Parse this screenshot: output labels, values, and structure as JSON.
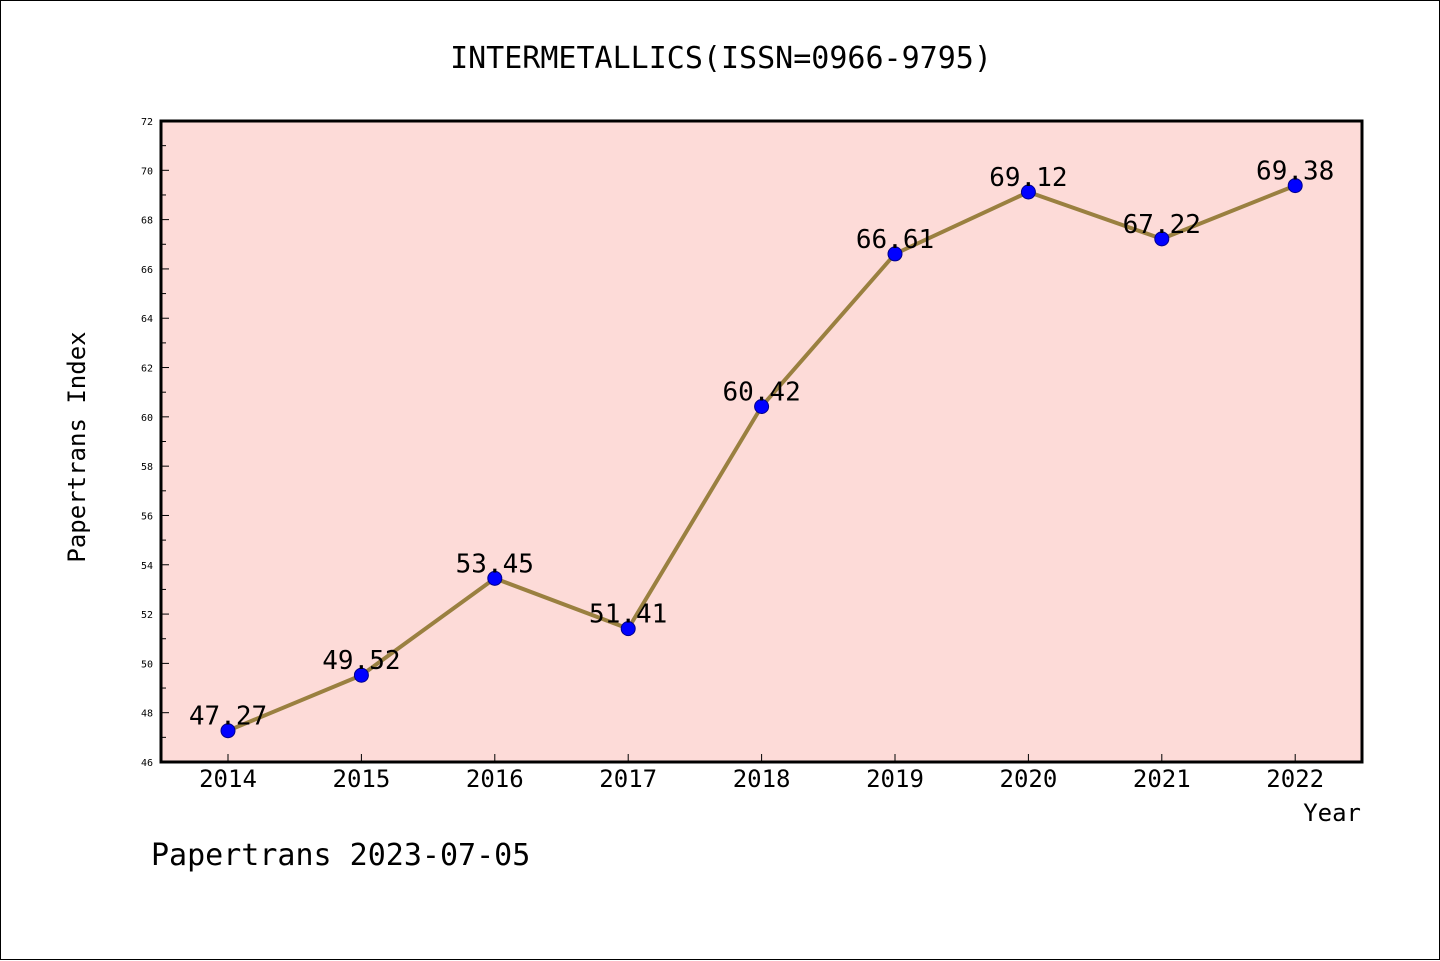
{
  "chart_data": {
    "type": "line",
    "title": "INTERMETALLICS(ISSN=0966-9795)",
    "xlabel": "Year",
    "ylabel": "Papertrans Index",
    "footer": "Papertrans 2023-07-05",
    "categories": [
      "2014",
      "2015",
      "2016",
      "2017",
      "2018",
      "2019",
      "2020",
      "2021",
      "2022"
    ],
    "values": [
      47.27,
      49.52,
      53.45,
      51.41,
      60.42,
      66.61,
      69.12,
      67.22,
      69.38
    ],
    "data_labels": [
      "47.27",
      "49.52",
      "53.45",
      "51.41",
      "60.42",
      "66.61",
      "69.12",
      "67.22",
      "69.38"
    ],
    "ylim": [
      46,
      72
    ],
    "yticks": [
      "46",
      "48",
      "50",
      "52",
      "54",
      "56",
      "58",
      "60",
      "62",
      "64",
      "66",
      "68",
      "70",
      "72"
    ],
    "grid": false,
    "colors": {
      "plot_background": "#fddbd8",
      "line": "#9a8040",
      "marker": "#0000ff",
      "marker_edge": "#00008b"
    }
  }
}
